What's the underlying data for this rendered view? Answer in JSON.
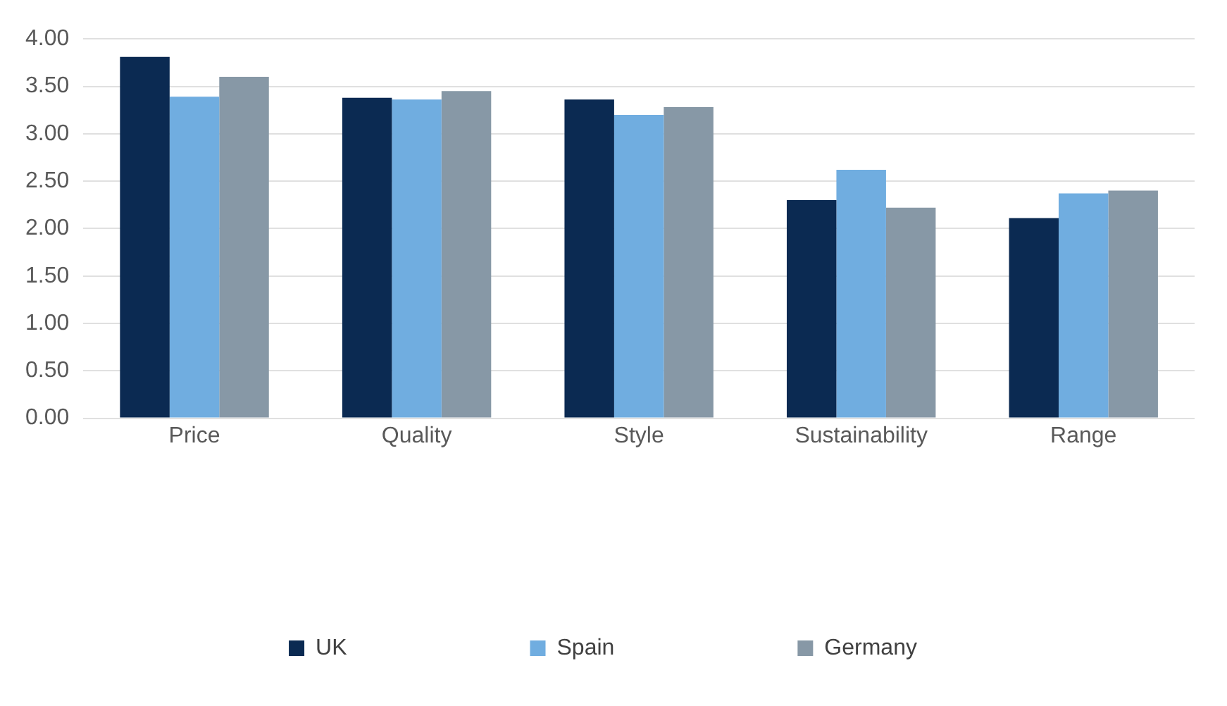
{
  "chart_data": {
    "type": "bar",
    "categories": [
      "Price",
      "Quality",
      "Style",
      "Sustainability",
      "Range"
    ],
    "series": [
      {
        "name": "UK",
        "color": "#0b2a52",
        "values": [
          3.81,
          3.38,
          3.36,
          2.3,
          2.11
        ]
      },
      {
        "name": "Spain",
        "color": "#70ade0",
        "values": [
          3.39,
          3.36,
          3.2,
          2.62,
          2.37
        ]
      },
      {
        "name": "Germany",
        "color": "#8798a6",
        "values": [
          3.6,
          3.45,
          3.28,
          2.22,
          2.4
        ]
      }
    ],
    "ylim": [
      0,
      4
    ],
    "yticks": [
      {
        "value": 0,
        "label": "0.00"
      },
      {
        "value": 0.5,
        "label": "0.50"
      },
      {
        "value": 1,
        "label": "1.00"
      },
      {
        "value": 1.5,
        "label": "1.50"
      },
      {
        "value": 2,
        "label": "2.00"
      },
      {
        "value": 2.5,
        "label": "2.50"
      },
      {
        "value": 3,
        "label": "3.00"
      },
      {
        "value": 3.5,
        "label": "3.50"
      },
      {
        "value": 4,
        "label": "4.00"
      }
    ],
    "grid": "y",
    "legend": "bottom"
  }
}
